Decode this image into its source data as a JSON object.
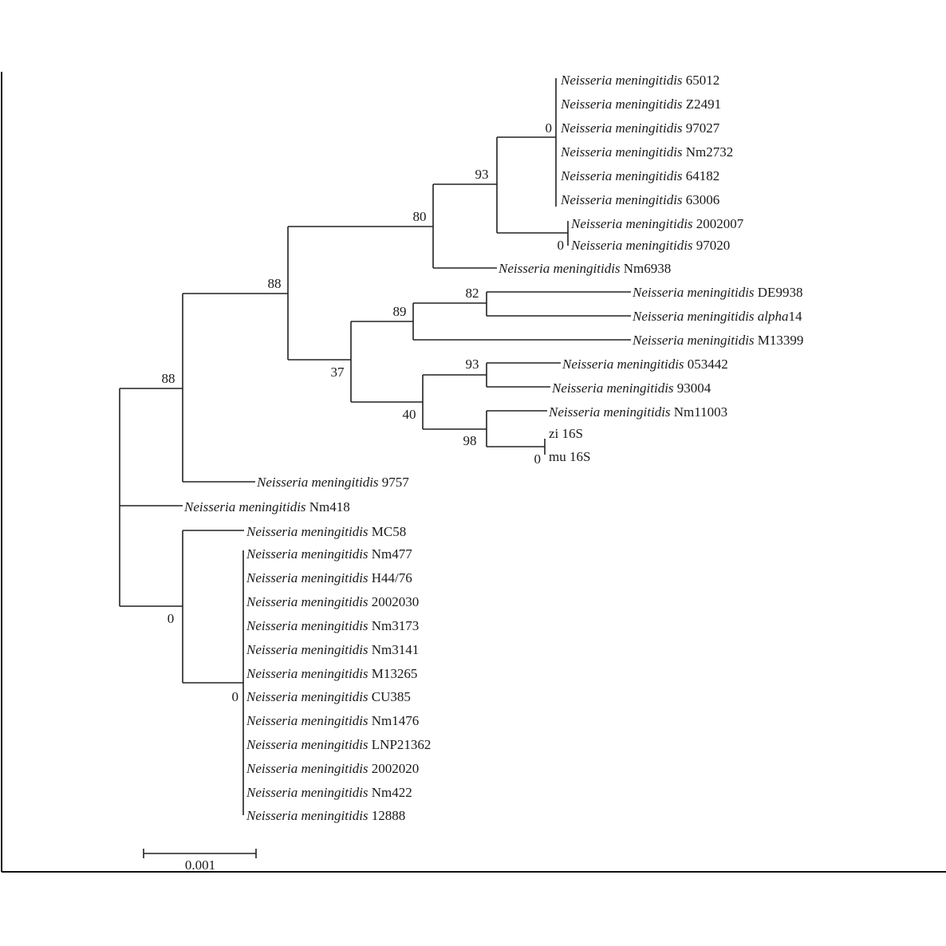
{
  "leaves": [
    {
      "id": "L1",
      "species": "Neisseria meningitidis",
      "strain": "65012"
    },
    {
      "id": "L2",
      "species": "Neisseria meningitidis",
      "strain": "Z2491"
    },
    {
      "id": "L3",
      "species": "Neisseria meningitidis",
      "strain": "97027"
    },
    {
      "id": "L4",
      "species": "Neisseria meningitidis",
      "strain": "Nm2732"
    },
    {
      "id": "L5",
      "species": "Neisseria meningitidis",
      "strain": "64182"
    },
    {
      "id": "L6",
      "species": "Neisseria meningitidis",
      "strain": "63006"
    },
    {
      "id": "L7",
      "species": "Neisseria meningitidis",
      "strain": "2002007"
    },
    {
      "id": "L8",
      "species": "Neisseria meningitidis",
      "strain": "97020"
    },
    {
      "id": "L9",
      "species": "Neisseria meningitidis",
      "strain": "Nm6938"
    },
    {
      "id": "L10",
      "species": "Neisseria meningitidis",
      "strain": "DE9938"
    },
    {
      "id": "L11",
      "species": "Neisseria meningitidis alpha",
      "strain": "14"
    },
    {
      "id": "L12",
      "species": "Neisseria meningitidis",
      "strain": "M13399"
    },
    {
      "id": "L13",
      "species": "Neisseria meningitidis",
      "strain": "053442"
    },
    {
      "id": "L14",
      "species": "Neisseria meningitidis",
      "strain": "93004"
    },
    {
      "id": "L15",
      "species": "Neisseria meningitidis",
      "strain": "Nm11003"
    },
    {
      "id": "L16",
      "species": "",
      "strain": "zi 16S"
    },
    {
      "id": "L17",
      "species": "",
      "strain": "mu 16S"
    },
    {
      "id": "L18",
      "species": "Neisseria meningitidis",
      "strain": "9757"
    },
    {
      "id": "L19",
      "species": "Neisseria meningitidis",
      "strain": "Nm418"
    },
    {
      "id": "L20",
      "species": "Neisseria meningitidis",
      "strain": "MC58"
    },
    {
      "id": "L21",
      "species": "Neisseria meningitidis",
      "strain": "Nm477"
    },
    {
      "id": "L22",
      "species": "Neisseria meningitidis",
      "strain": "H44/76"
    },
    {
      "id": "L23",
      "species": "Neisseria meningitidis",
      "strain": "2002030"
    },
    {
      "id": "L24",
      "species": "Neisseria meningitidis",
      "strain": "Nm3173"
    },
    {
      "id": "L25",
      "species": "Neisseria meningitidis",
      "strain": "Nm3141"
    },
    {
      "id": "L26",
      "species": "Neisseria meningitidis",
      "strain": "M13265"
    },
    {
      "id": "L27",
      "species": "Neisseria meningitidis",
      "strain": "CU385"
    },
    {
      "id": "L28",
      "species": "Neisseria meningitidis",
      "strain": "Nm1476"
    },
    {
      "id": "L29",
      "species": "Neisseria meningitidis",
      "strain": "LNP21362"
    },
    {
      "id": "L30",
      "species": "Neisseria meningitidis",
      "strain": "2002020"
    },
    {
      "id": "L31",
      "species": "Neisseria meningitidis",
      "strain": "Nm422"
    },
    {
      "id": "L32",
      "species": "Neisseria meningitidis",
      "strain": "12888"
    }
  ],
  "bootstrap": [
    {
      "id": "b-clade-65012",
      "value": "0"
    },
    {
      "id": "b-clade-2002007",
      "value": "0"
    },
    {
      "id": "b-93-upper",
      "value": "93"
    },
    {
      "id": "b-80",
      "value": "80"
    },
    {
      "id": "b-88-inner",
      "value": "88"
    },
    {
      "id": "b-82",
      "value": "82"
    },
    {
      "id": "b-89",
      "value": "89"
    },
    {
      "id": "b-37",
      "value": "37"
    },
    {
      "id": "b-93-lower",
      "value": "93"
    },
    {
      "id": "b-40",
      "value": "40"
    },
    {
      "id": "b-98",
      "value": "98"
    },
    {
      "id": "b-16s",
      "value": "0"
    },
    {
      "id": "b-88-outer",
      "value": "88"
    },
    {
      "id": "b-mc58",
      "value": "0"
    },
    {
      "id": "b-nm477",
      "value": "0"
    }
  ],
  "scale_bar": {
    "label": "0.001"
  }
}
